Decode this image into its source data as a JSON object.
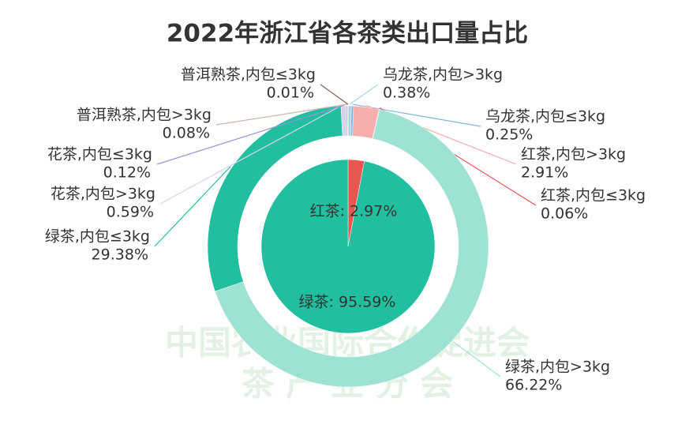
{
  "chart_data": {
    "type": "pie",
    "title": "2022年浙江省各茶类出口量占比",
    "watermark": [
      "中国农业国际合作促进会",
      "茶  产  业  分  会"
    ],
    "outer": {
      "categories": [
        "乌龙茶,内包>3kg",
        "乌龙茶,内包≤3kg",
        "红茶,内包>3kg",
        "红茶,内包≤3kg",
        "绿茶,内包>3kg",
        "绿茶,内包≤3kg",
        "花茶,内包>3kg",
        "花茶,内包≤3kg",
        "普洱熟茶,内包>3kg",
        "普洱熟茶,内包≤3kg"
      ],
      "values": [
        0.38,
        0.25,
        2.91,
        0.06,
        66.22,
        29.38,
        0.59,
        0.12,
        0.08,
        0.01
      ],
      "value_labels": [
        "0.38%",
        "0.25%",
        "2.91%",
        "0.06%",
        "66.22%",
        "29.38%",
        "0.59%",
        "0.12%",
        "0.08%",
        "0.01%"
      ],
      "colors": [
        "#a9d3ea",
        "#7fb6dc",
        "#f6aeac",
        "#e8564f",
        "#9de2d2",
        "#21bf9f",
        "#d6d2ee",
        "#9b8fd6",
        "#cbb5b0",
        "#8a5a50"
      ]
    },
    "inner": {
      "values": [
        2.97,
        95.59
      ],
      "value_labels": [
        "红茶: 2.97%",
        "绿茶: 95.59%"
      ],
      "colors": [
        "#e8564f",
        "#21bf9f"
      ]
    }
  }
}
